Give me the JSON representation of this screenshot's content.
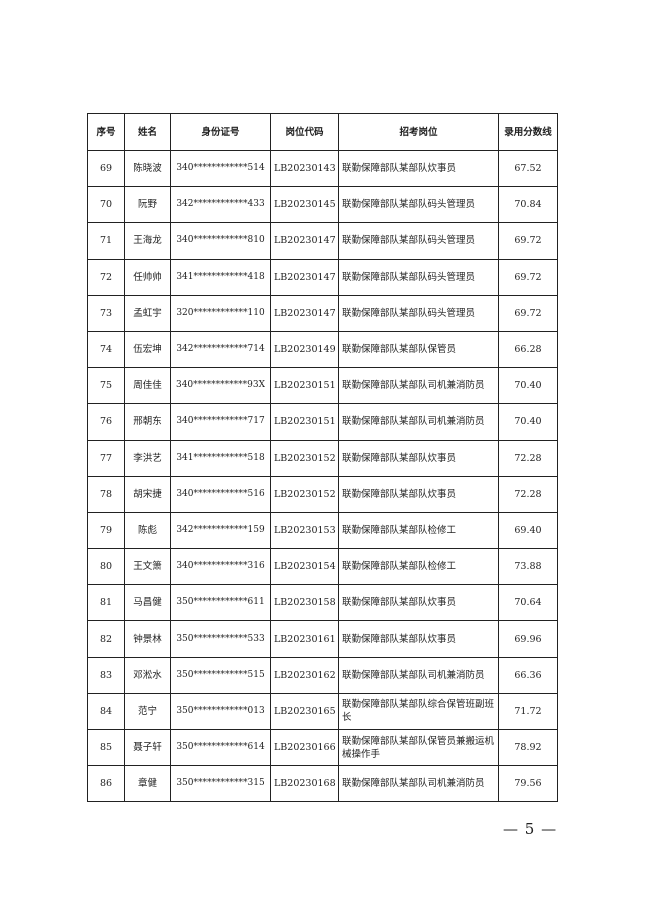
{
  "table": {
    "headers": [
      "序号",
      "姓名",
      "身份证号",
      "岗位代码",
      "招考岗位",
      "录用分数线"
    ],
    "rows": [
      [
        "69",
        "陈晓波",
        "340************514",
        "LB20230143",
        "联勤保障部队某部队炊事员",
        "67.52"
      ],
      [
        "70",
        "阮野",
        "342************433",
        "LB20230145",
        "联勤保障部队某部队码头管理员",
        "70.84"
      ],
      [
        "71",
        "王海龙",
        "340************810",
        "LB20230147",
        "联勤保障部队某部队码头管理员",
        "69.72"
      ],
      [
        "72",
        "任帅帅",
        "341************418",
        "LB20230147",
        "联勤保障部队某部队码头管理员",
        "69.72"
      ],
      [
        "73",
        "孟虹宇",
        "320************110",
        "LB20230147",
        "联勤保障部队某部队码头管理员",
        "69.72"
      ],
      [
        "74",
        "伍宏坤",
        "342************714",
        "LB20230149",
        "联勤保障部队某部队保管员",
        "66.28"
      ],
      [
        "75",
        "周佳佳",
        "340************93X",
        "LB20230151",
        "联勤保障部队某部队司机兼消防员",
        "70.40"
      ],
      [
        "76",
        "邢朝东",
        "340************717",
        "LB20230151",
        "联勤保障部队某部队司机兼消防员",
        "70.40"
      ],
      [
        "77",
        "李洪艺",
        "341************518",
        "LB20230152",
        "联勤保障部队某部队炊事员",
        "72.28"
      ],
      [
        "78",
        "胡宋捷",
        "340************516",
        "LB20230152",
        "联勤保障部队某部队炊事员",
        "72.28"
      ],
      [
        "79",
        "陈彪",
        "342************159",
        "LB20230153",
        "联勤保障部队某部队检修工",
        "69.40"
      ],
      [
        "80",
        "王文箫",
        "340************316",
        "LB20230154",
        "联勤保障部队某部队检修工",
        "73.88"
      ],
      [
        "81",
        "马昌健",
        "350************611",
        "LB20230158",
        "联勤保障部队某部队炊事员",
        "70.64"
      ],
      [
        "82",
        "钟景林",
        "350************533",
        "LB20230161",
        "联勤保障部队某部队炊事员",
        "69.96"
      ],
      [
        "83",
        "邓淞水",
        "350************515",
        "LB20230162",
        "联勤保障部队某部队司机兼消防员",
        "66.36"
      ],
      [
        "84",
        "范宁",
        "350************013",
        "LB20230165",
        "联勤保障部队某部队综合保管班副班长",
        "71.72"
      ],
      [
        "85",
        "聂子轩",
        "350************614",
        "LB20230166",
        "联勤保障部队某部队保管员兼搬运机械操作手",
        "78.92"
      ],
      [
        "86",
        "章健",
        "350************315",
        "LB20230168",
        "联勤保障部队某部队司机兼消防员",
        "79.56"
      ]
    ]
  },
  "footer": {
    "page_number": "— 5 —"
  }
}
